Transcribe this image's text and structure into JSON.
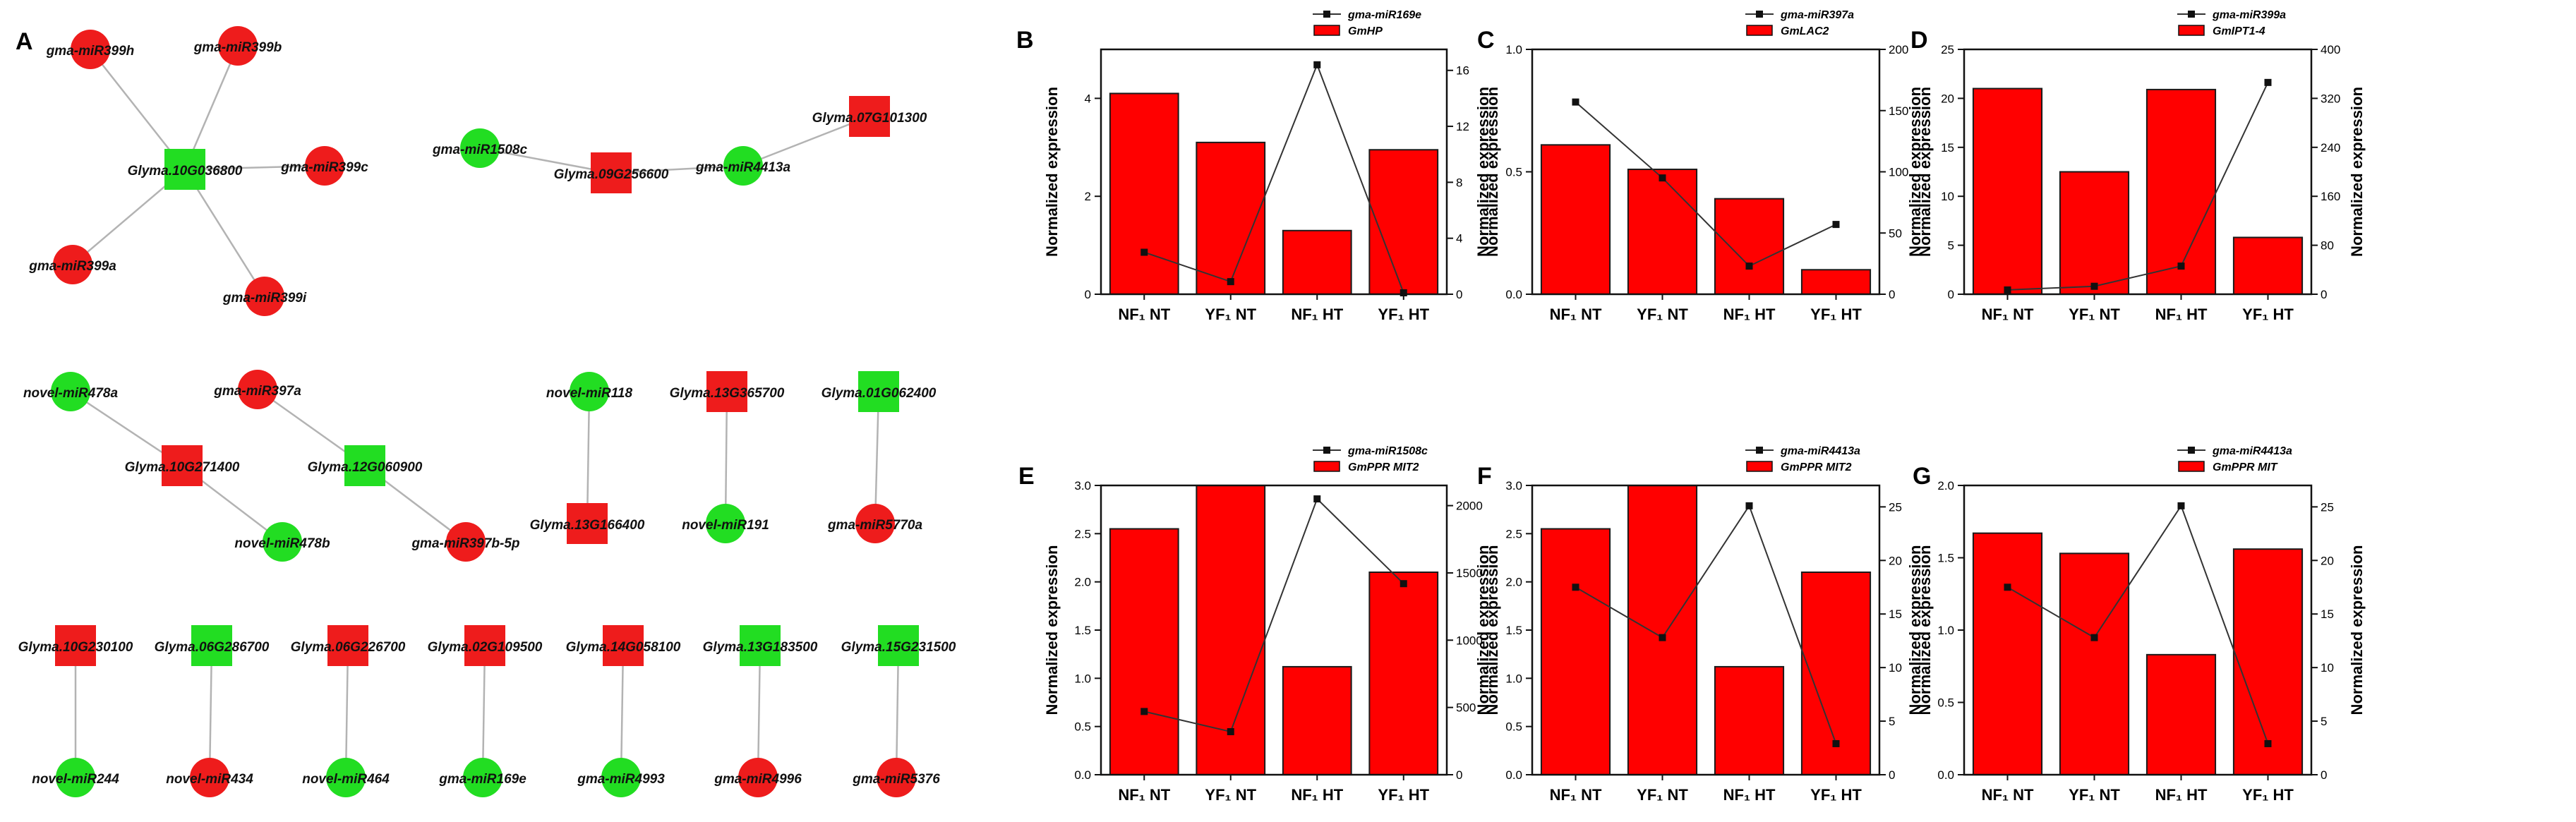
{
  "network": {
    "label": "A",
    "node_colors": {
      "red": "#ee1c1c",
      "green": "#22dd22"
    },
    "groups": [
      {
        "nodes": [
          {
            "id": "gma-miR399h",
            "shape": "circle",
            "color": "red"
          },
          {
            "id": "gma-miR399b",
            "shape": "circle",
            "color": "red"
          },
          {
            "id": "Glyma.10G036800",
            "shape": "square",
            "color": "green"
          },
          {
            "id": "gma-miR399c",
            "shape": "circle",
            "color": "red"
          },
          {
            "id": "gma-miR399a",
            "shape": "circle",
            "color": "red"
          },
          {
            "id": "gma-miR399i",
            "shape": "circle",
            "color": "red"
          }
        ],
        "edges": [
          [
            "Glyma.10G036800",
            "gma-miR399h"
          ],
          [
            "Glyma.10G036800",
            "gma-miR399b"
          ],
          [
            "Glyma.10G036800",
            "gma-miR399c"
          ],
          [
            "Glyma.10G036800",
            "gma-miR399a"
          ],
          [
            "Glyma.10G036800",
            "gma-miR399i"
          ]
        ]
      },
      {
        "nodes": [
          {
            "id": "gma-miR1508c",
            "shape": "circle",
            "color": "green"
          },
          {
            "id": "Glyma.09G256600",
            "shape": "square",
            "color": "red"
          },
          {
            "id": "gma-miR4413a",
            "shape": "circle",
            "color": "green"
          },
          {
            "id": "Glyma.07G101300",
            "shape": "square",
            "color": "red"
          }
        ],
        "edges": [
          [
            "gma-miR1508c",
            "Glyma.09G256600"
          ],
          [
            "Glyma.09G256600",
            "gma-miR4413a"
          ],
          [
            "gma-miR4413a",
            "Glyma.07G101300"
          ]
        ]
      },
      {
        "nodes": [
          {
            "id": "novel-miR478a",
            "shape": "circle",
            "color": "green"
          },
          {
            "id": "Glyma.10G271400",
            "shape": "square",
            "color": "red"
          },
          {
            "id": "novel-miR478b",
            "shape": "circle",
            "color": "green"
          }
        ],
        "edges": [
          [
            "novel-miR478a",
            "Glyma.10G271400"
          ],
          [
            "Glyma.10G271400",
            "novel-miR478b"
          ]
        ]
      },
      {
        "nodes": [
          {
            "id": "gma-miR397a",
            "shape": "circle",
            "color": "red"
          },
          {
            "id": "Glyma.12G060900",
            "shape": "square",
            "color": "green"
          },
          {
            "id": "gma-miR397b-5p",
            "shape": "circle",
            "color": "red"
          }
        ],
        "edges": [
          [
            "gma-miR397a",
            "Glyma.12G060900"
          ],
          [
            "Glyma.12G060900",
            "gma-miR397b-5p"
          ]
        ]
      },
      {
        "nodes": [
          {
            "id": "novel-miR118",
            "shape": "circle",
            "color": "green"
          },
          {
            "id": "Glyma.13G166400",
            "shape": "square",
            "color": "red"
          }
        ],
        "edges": [
          [
            "novel-miR118",
            "Glyma.13G166400"
          ]
        ]
      },
      {
        "nodes": [
          {
            "id": "Glyma.13G365700",
            "shape": "square",
            "color": "red"
          },
          {
            "id": "novel-miR191",
            "shape": "circle",
            "color": "green"
          }
        ],
        "edges": [
          [
            "Glyma.13G365700",
            "novel-miR191"
          ]
        ]
      },
      {
        "nodes": [
          {
            "id": "Glyma.01G062400",
            "shape": "square",
            "color": "green"
          },
          {
            "id": "gma-miR5770a",
            "shape": "circle",
            "color": "red"
          }
        ],
        "edges": [
          [
            "Glyma.01G062400",
            "gma-miR5770a"
          ]
        ]
      },
      {
        "nodes": [
          {
            "id": "Glyma.10G230100",
            "shape": "square",
            "color": "red"
          },
          {
            "id": "novel-miR244",
            "shape": "circle",
            "color": "green"
          }
        ],
        "edges": [
          [
            "Glyma.10G230100",
            "novel-miR244"
          ]
        ]
      },
      {
        "nodes": [
          {
            "id": "Glyma.06G286700",
            "shape": "square",
            "color": "green"
          },
          {
            "id": "novel-miR434",
            "shape": "circle",
            "color": "red"
          }
        ],
        "edges": [
          [
            "Glyma.06G286700",
            "novel-miR434"
          ]
        ]
      },
      {
        "nodes": [
          {
            "id": "Glyma.06G226700",
            "shape": "square",
            "color": "red"
          },
          {
            "id": "novel-miR464",
            "shape": "circle",
            "color": "green"
          }
        ],
        "edges": [
          [
            "Glyma.06G226700",
            "novel-miR464"
          ]
        ]
      },
      {
        "nodes": [
          {
            "id": "Glyma.02G109500",
            "shape": "square",
            "color": "red"
          },
          {
            "id": "gma-miR169e",
            "shape": "circle",
            "color": "green"
          }
        ],
        "edges": [
          [
            "Glyma.02G109500",
            "gma-miR169e"
          ]
        ]
      },
      {
        "nodes": [
          {
            "id": "Glyma.14G058100",
            "shape": "square",
            "color": "red"
          },
          {
            "id": "gma-miR4993",
            "shape": "circle",
            "color": "green"
          }
        ],
        "edges": [
          [
            "Glyma.14G058100",
            "gma-miR4993"
          ]
        ]
      },
      {
        "nodes": [
          {
            "id": "Glyma.13G183500",
            "shape": "square",
            "color": "green"
          },
          {
            "id": "gma-miR4996",
            "shape": "circle",
            "color": "red"
          }
        ],
        "edges": [
          [
            "Glyma.13G183500",
            "gma-miR4996"
          ]
        ]
      },
      {
        "nodes": [
          {
            "id": "Glyma.15G231500",
            "shape": "square",
            "color": "green"
          },
          {
            "id": "gma-miR5376",
            "shape": "circle",
            "color": "red"
          }
        ],
        "edges": [
          [
            "Glyma.15G231500",
            "gma-miR5376"
          ]
        ]
      }
    ]
  },
  "chart_data": [
    {
      "panel": "B",
      "type": "bar+line",
      "categories": [
        "NF₁ NT",
        "YF₁ NT",
        "NF₁ HT",
        "YF₁ HT"
      ],
      "bar_series": {
        "name": "GmHP",
        "values": [
          4.1,
          3.1,
          1.3,
          2.95
        ]
      },
      "line_series": {
        "name": "gma-miR169e",
        "values": [
          3.0,
          0.9,
          16.4,
          0.1
        ]
      },
      "ylabel": "Normalized expression",
      "y2label": "Normalized expression",
      "ylim": [
        0,
        5
      ],
      "yticks": [
        0,
        2,
        4
      ],
      "y2lim": [
        0,
        17.5
      ],
      "y2ticks": [
        0,
        4,
        8,
        12,
        16
      ]
    },
    {
      "panel": "C",
      "type": "bar+line",
      "categories": [
        "NF₁ NT",
        "YF₁ NT",
        "NF₁ HT",
        "YF₁ HT"
      ],
      "bar_series": {
        "name": "GmLAC2",
        "values": [
          0.61,
          0.51,
          0.39,
          0.1
        ]
      },
      "line_series": {
        "name": "gma-miR397a",
        "values": [
          157,
          95,
          23,
          57
        ]
      },
      "ylabel": "Normalized expression",
      "y2label": "Normalized expression",
      "ylim": [
        0,
        1.0
      ],
      "yticks": [
        "0.0",
        "0.5",
        "1.0"
      ],
      "y2lim": [
        0,
        200
      ],
      "y2ticks": [
        0,
        50,
        100,
        150,
        200
      ]
    },
    {
      "panel": "D",
      "type": "bar+line",
      "categories": [
        "NF₁ NT",
        "YF₁ NT",
        "NF₁ HT",
        "YF₁ HT"
      ],
      "bar_series": {
        "name": "GmIPT1-4",
        "values": [
          21,
          12.5,
          20.9,
          5.8
        ]
      },
      "line_series": {
        "name": "gma-miR399a",
        "values": [
          7,
          13,
          46,
          346
        ]
      },
      "ylabel": "Normalized expression",
      "y2label": "Normalized expression",
      "ylim": [
        0,
        25
      ],
      "yticks": [
        0,
        5,
        10,
        15,
        20,
        25
      ],
      "y2lim": [
        0,
        400
      ],
      "y2ticks": [
        0,
        80,
        160,
        240,
        320,
        400
      ]
    },
    {
      "panel": "E",
      "type": "bar+line",
      "categories": [
        "NF₁ NT",
        "YF₁ NT",
        "NF₁ HT",
        "YF₁ HT"
      ],
      "bar_series": {
        "name": "GmPPR MIT2",
        "values": [
          2.55,
          3.0,
          1.12,
          2.1
        ]
      },
      "line_series": {
        "name": "gma-miR1508c",
        "values": [
          470,
          320,
          2050,
          1420
        ]
      },
      "ylabel": "Normalized expression",
      "y2label": "Normalized expression",
      "ylim": [
        0,
        3.0
      ],
      "yticks": [
        "0.0",
        "0.5",
        "1.0",
        "1.5",
        "2.0",
        "2.5",
        "3.0"
      ],
      "y2lim": [
        0,
        2150
      ],
      "y2ticks": [
        0,
        500,
        1000,
        1500,
        2000
      ]
    },
    {
      "panel": "F",
      "type": "bar+line",
      "categories": [
        "NF₁ NT",
        "YF₁ NT",
        "NF₁ HT",
        "YF₁ HT"
      ],
      "bar_series": {
        "name": "GmPPR MIT2",
        "values": [
          2.55,
          3.0,
          1.12,
          2.1
        ]
      },
      "line_series": {
        "name": "gma-miR4413a",
        "values": [
          17.5,
          12.8,
          25.1,
          2.9
        ]
      },
      "ylabel": "Normalized expression",
      "y2label": "Normalized expression",
      "ylim": [
        0,
        3.0
      ],
      "yticks": [
        "0.0",
        "0.5",
        "1.0",
        "1.5",
        "2.0",
        "2.5",
        "3.0"
      ],
      "y2lim": [
        0,
        27
      ],
      "y2ticks": [
        0,
        5,
        10,
        15,
        20,
        25
      ]
    },
    {
      "panel": "G",
      "type": "bar+line",
      "categories": [
        "NF₁ NT",
        "YF₁ NT",
        "NF₁ HT",
        "YF₁ HT"
      ],
      "bar_series": {
        "name": "GmPPR MIT",
        "values": [
          1.67,
          1.53,
          0.83,
          1.56
        ]
      },
      "line_series": {
        "name": "gma-miR4413a",
        "values": [
          17.5,
          12.8,
          25.1,
          2.9
        ]
      },
      "ylabel": "Normalized expression",
      "y2label": "Normalized expression",
      "ylim": [
        0,
        2.0
      ],
      "yticks": [
        "0.0",
        "0.5",
        "1.0",
        "1.5",
        "2.0"
      ],
      "y2lim": [
        0,
        27
      ],
      "y2ticks": [
        0,
        5,
        10,
        15,
        20,
        25
      ]
    }
  ]
}
